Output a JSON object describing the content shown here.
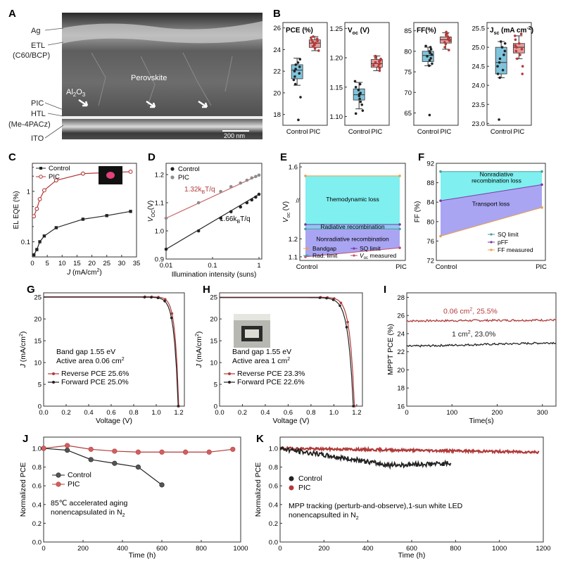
{
  "colors": {
    "control": "#222222",
    "pic": "#b23a3a",
    "pic_light": "#c96a6a",
    "box_control": "#7fc4dc",
    "box_pic": "#e79a9a",
    "cyan": "#7fefef",
    "blue": "#8fc6f2",
    "violet": "#a9a5f3",
    "orange": "#e9a04a",
    "teal": "#4a9e9e",
    "purple": "#7a3aa0",
    "green": "#5fa25f"
  },
  "panels": {
    "A": {
      "letter": "A",
      "labels": [
        "Ag",
        "ETL",
        "(C60/BCP)",
        "PIC",
        "HTL",
        "(Me-4PACz)",
        "ITO"
      ],
      "overlay": {
        "al2o3": "Al",
        "al2o3_sub": "2",
        "al2o3_end": "O",
        "al2o3_sub2": "3",
        "perovskite": "Perovskite",
        "scale": "200 nm"
      }
    },
    "B": {
      "letter": "B"
    },
    "C": {
      "letter": "C"
    },
    "D": {
      "letter": "D"
    },
    "E": {
      "letter": "E"
    },
    "F": {
      "letter": "F"
    },
    "G": {
      "letter": "G"
    },
    "H": {
      "letter": "H"
    },
    "I": {
      "letter": "I"
    },
    "J": {
      "letter": "J"
    },
    "K": {
      "letter": "K"
    }
  },
  "chart_data": [
    {
      "id": "B1",
      "type": "box",
      "title": "PCE (%)",
      "categories": [
        "Control",
        "PIC"
      ],
      "yticks": [
        18,
        20,
        22,
        24,
        26
      ],
      "ylim": [
        17,
        26.5
      ],
      "boxes": [
        {
          "name": "Control",
          "q1": 21.3,
          "median": 22.1,
          "q3": 22.6,
          "whisker_low": 20.7,
          "whisker_high": 23.2,
          "points": [
            17.5,
            19.6,
            20.8,
            21.2,
            21.5,
            21.8,
            22.0,
            22.2,
            22.4,
            22.6,
            22.8,
            23.1
          ]
        },
        {
          "name": "PIC",
          "q1": 24.2,
          "median": 24.6,
          "q3": 24.9,
          "whisker_low": 23.9,
          "whisker_high": 25.2,
          "points": [
            23.9,
            24.1,
            24.3,
            24.4,
            24.5,
            24.6,
            24.7,
            24.8,
            24.9,
            25.0,
            25.1,
            25.2
          ]
        }
      ]
    },
    {
      "id": "B2",
      "type": "box",
      "title": "V",
      "title_sub": "oc",
      "title_unit": " (V)",
      "categories": [
        "Control",
        "PIC"
      ],
      "yticks": [
        1.1,
        1.15,
        1.2,
        1.25
      ],
      "ytick_labels": [
        "1.10",
        "1.15",
        "1.20",
        "1.25"
      ],
      "ylim": [
        1.085,
        1.26
      ],
      "boxes": [
        {
          "name": "Control",
          "q1": 1.128,
          "median": 1.137,
          "q3": 1.147,
          "whisker_low": 1.113,
          "whisker_high": 1.158,
          "points": [
            1.105,
            1.11,
            1.12,
            1.125,
            1.13,
            1.135,
            1.138,
            1.14,
            1.145,
            1.15,
            1.155,
            1.16
          ]
        },
        {
          "name": "PIC",
          "q1": 1.184,
          "median": 1.19,
          "q3": 1.197,
          "whisker_low": 1.178,
          "whisker_high": 1.203,
          "points": [
            1.178,
            1.182,
            1.185,
            1.187,
            1.189,
            1.19,
            1.192,
            1.194,
            1.196,
            1.198,
            1.2,
            1.203
          ]
        }
      ]
    },
    {
      "id": "B3",
      "type": "box",
      "title": "FF(%)",
      "categories": [
        "Control",
        "PIC"
      ],
      "yticks": [
        65,
        70,
        75,
        80,
        85
      ],
      "ylim": [
        62,
        87
      ],
      "boxes": [
        {
          "name": "Control",
          "q1": 77.5,
          "median": 79.0,
          "q3": 80.0,
          "whisker_low": 76.5,
          "whisker_high": 81.0,
          "points": [
            64.5,
            76.5,
            77.0,
            77.8,
            78.3,
            78.8,
            79.2,
            79.6,
            80.0,
            80.5,
            81.0,
            81.3
          ]
        },
        {
          "name": "PIC",
          "q1": 82.0,
          "median": 82.8,
          "q3": 83.5,
          "whisker_low": 80.5,
          "whisker_high": 84.5,
          "points": [
            80.3,
            81.0,
            81.8,
            82.2,
            82.5,
            82.8,
            83.0,
            83.3,
            83.6,
            84.0,
            84.3,
            84.7
          ]
        }
      ]
    },
    {
      "id": "B4",
      "type": "box",
      "title": "J",
      "title_sub": "sc",
      "title_unit": " (mA cm",
      "title_sup": "-2",
      "title_end": ")",
      "categories": [
        "Control",
        "PIC"
      ],
      "yticks": [
        23.0,
        23.5,
        24.0,
        24.5,
        25.0,
        25.5
      ],
      "ytick_labels": [
        "23.0",
        "23.5",
        "24.0",
        "24.5",
        "25.0",
        "25.5"
      ],
      "ylim": [
        22.95,
        25.65
      ],
      "boxes": [
        {
          "name": "Control",
          "q1": 24.3,
          "median": 24.6,
          "q3": 25.0,
          "whisker_low": 24.2,
          "whisker_high": 25.15,
          "points": [
            23.1,
            24.2,
            24.3,
            24.4,
            24.5,
            24.6,
            24.7,
            24.8,
            24.9,
            25.0,
            25.1,
            25.15
          ]
        },
        {
          "name": "PIC",
          "q1": 24.85,
          "median": 25.0,
          "q3": 25.1,
          "whisker_low": 24.7,
          "whisker_high": 25.3,
          "points": [
            24.3,
            24.5,
            24.7,
            24.8,
            24.9,
            24.95,
            25.0,
            25.05,
            25.1,
            25.2,
            25.3,
            25.35
          ]
        }
      ]
    },
    {
      "id": "C",
      "type": "line",
      "ylog": true,
      "xlabel": "J",
      "xlabel_unit": " (mA/cm",
      "xlabel_sup": "2",
      "xlabel_end": ")",
      "ylabel": "EL EQE (%)",
      "xlim": [
        0,
        35
      ],
      "xticks": [
        0,
        5,
        10,
        15,
        20,
        25,
        30,
        35
      ],
      "ylim": [
        0.05,
        3.6
      ],
      "yticks": [
        0.1,
        1
      ],
      "ytick_labels": [
        "0.1",
        "1"
      ],
      "legend": [
        "Control",
        "PIC"
      ],
      "series": [
        {
          "name": "Control",
          "x": [
            0.5,
            1.5,
            2.5,
            4,
            8,
            17,
            25,
            33
          ],
          "y": [
            0.055,
            0.07,
            0.1,
            0.13,
            0.19,
            0.28,
            0.33,
            0.4
          ]
        },
        {
          "name": "PIC",
          "x": [
            0.5,
            1.5,
            2.5,
            4,
            8,
            17,
            25,
            33
          ],
          "y": [
            0.32,
            0.45,
            0.7,
            1.05,
            1.65,
            2.25,
            2.35,
            2.45
          ]
        }
      ]
    },
    {
      "id": "D",
      "type": "scatter",
      "xlog": true,
      "xlabel": "Illumination intensity (suns)",
      "ylabel": "V",
      "ylabel_sub": "OC",
      "ylabel_unit": "(V)",
      "xlim": [
        0.01,
        1.15
      ],
      "xticks": [
        0.01,
        0.1,
        1
      ],
      "xtick_labels": [
        "0.01",
        "0.1",
        "1"
      ],
      "ylim": [
        0.9,
        1.24
      ],
      "yticks": [
        0.9,
        1.0,
        1.1,
        1.2
      ],
      "ytick_labels": [
        "0.9",
        "1.0",
        "1.1",
        "1.2"
      ],
      "legend": [
        "Control",
        "PIC"
      ],
      "annotations": [
        {
          "text": "1.32k",
          "sub": "B",
          "end": "T/q",
          "series": "PIC"
        },
        {
          "text": "1.66k",
          "sub": "B",
          "end": "T/q",
          "series": "Control"
        }
      ],
      "series": [
        {
          "name": "Control",
          "x": [
            0.01,
            0.05,
            0.15,
            0.25,
            0.4,
            0.55,
            0.7,
            0.85,
            1.0
          ],
          "y": [
            0.935,
            1.0,
            1.045,
            1.068,
            1.085,
            1.1,
            1.11,
            1.12,
            1.13
          ]
        },
        {
          "name": "PIC",
          "x": [
            0.01,
            0.05,
            0.15,
            0.25,
            0.4,
            0.55,
            0.7,
            0.85,
            1.0
          ],
          "y": [
            1.045,
            1.1,
            1.14,
            1.157,
            1.17,
            1.18,
            1.188,
            1.193,
            1.198
          ]
        }
      ]
    },
    {
      "id": "E",
      "type": "line",
      "ylabel": "V",
      "ylabel_sub": "oc",
      "ylabel_unit": " (V)",
      "categories": [
        "Control",
        "PIC"
      ],
      "ylim": [
        1.08,
        1.62
      ],
      "yticks": [
        1.1,
        1.2,
        1.6
      ],
      "ytick_labels": [
        "1.1",
        "1.2",
        "1.6"
      ],
      "regions": [
        "Themodynamic loss",
        "Radiative recombination",
        "Nonradiative recombination"
      ],
      "legend": [
        "Bandgap",
        "Rad. limit",
        "SQ limit",
        "V",
        "oc",
        " measured"
      ],
      "series": [
        {
          "name": "Bandgap",
          "y": [
            1.55,
            1.55
          ]
        },
        {
          "name": "SQ limit",
          "y": [
            1.28,
            1.28
          ]
        },
        {
          "name": "Rad. limit",
          "y": [
            1.255,
            1.255
          ]
        },
        {
          "name": "Voc measured",
          "y": [
            1.1,
            1.15
          ]
        }
      ]
    },
    {
      "id": "F",
      "type": "line",
      "ylabel": "FF (%)",
      "categories": [
        "Control",
        "PIC"
      ],
      "ylim": [
        72,
        92
      ],
      "yticks": [
        72,
        76,
        80,
        84,
        88,
        92
      ],
      "regions": [
        "Nonradiative",
        "recombination loss",
        "Transport loss"
      ],
      "legend": [
        "SQ limit",
        "pFF",
        "FF measured"
      ],
      "series": [
        {
          "name": "SQ limit",
          "y": [
            90.3,
            90.3
          ]
        },
        {
          "name": "pFF",
          "y": [
            84.3,
            87.6
          ]
        },
        {
          "name": "FF measured",
          "y": [
            77.0,
            82.9
          ]
        }
      ]
    },
    {
      "id": "G",
      "type": "line",
      "xlabel": "Voltage (V)",
      "ylabel": "J",
      "ylabel_unit": " (mA/cm",
      "ylabel_sup": "2",
      "ylabel_end": ")",
      "xlim": [
        0,
        1.25
      ],
      "xticks": [
        0.0,
        0.2,
        0.4,
        0.6,
        0.8,
        1.0,
        1.2
      ],
      "xtick_labels": [
        "0.0",
        "0.2",
        "0.4",
        "0.6",
        "0.8",
        "1.0",
        "1.2"
      ],
      "ylim": [
        0,
        26
      ],
      "yticks": [
        0,
        5,
        10,
        15,
        20,
        25
      ],
      "info": [
        "Band gap 1.55 eV",
        "Active area 0.06 cm",
        "2"
      ],
      "legend": [
        "Reverse PCE 25.6%",
        "Forward PCE 25.0%"
      ],
      "series": [
        {
          "name": "Reverse PCE 25.6%",
          "voc": 1.2,
          "jsc": 25.1,
          "k": 0.032
        },
        {
          "name": "Forward PCE 25.0%",
          "voc": 1.195,
          "jsc": 25.0,
          "k": 0.036
        }
      ]
    },
    {
      "id": "H",
      "type": "line",
      "xlabel": "Voltage (V)",
      "ylabel": "J",
      "ylabel_unit": " (mA/cm",
      "ylabel_sup": "2",
      "ylabel_end": ")",
      "xlim": [
        0,
        1.25
      ],
      "xticks": [
        0.0,
        0.2,
        0.4,
        0.6,
        0.8,
        1.0,
        1.2
      ],
      "xtick_labels": [
        "0.0",
        "0.2",
        "0.4",
        "0.6",
        "0.8",
        "1.0",
        "1.2"
      ],
      "ylim": [
        0,
        26
      ],
      "yticks": [
        0,
        5,
        10,
        15,
        20,
        25
      ],
      "info": [
        "Band gap 1.55 eV",
        "Active area 1 cm",
        "2"
      ],
      "legend": [
        "Reverse PCE 23.3%",
        "Forward PCE 22.6%"
      ],
      "series": [
        {
          "name": "Reverse PCE 23.3%",
          "voc": 1.18,
          "jsc": 25.0,
          "k": 0.04
        },
        {
          "name": "Forward PCE 22.6%",
          "voc": 1.17,
          "jsc": 24.9,
          "k": 0.045
        }
      ]
    },
    {
      "id": "I",
      "type": "line",
      "xlabel": "Time(s)",
      "ylabel": "MPPT PCE (%)",
      "xlim": [
        0,
        330
      ],
      "xticks": [
        0,
        100,
        200,
        300
      ],
      "ylim": [
        16,
        28.5
      ],
      "yticks": [
        16,
        18,
        20,
        22,
        24,
        26,
        28
      ],
      "series": [
        {
          "name": "0.06 cm",
          "label_sup": "2",
          "label_end": ", 25.5%",
          "start": 25.4,
          "end": 25.5
        },
        {
          "name": "1 cm",
          "label_sup": "2",
          "label_end": ", 23.0%",
          "start": 22.6,
          "end": 23.0
        }
      ]
    },
    {
      "id": "J",
      "type": "line",
      "xlabel": "Time (h)",
      "ylabel": "Normalized PCE",
      "xlim": [
        0,
        1000
      ],
      "xticks": [
        0,
        200,
        400,
        600,
        800,
        1000
      ],
      "ylim": [
        0,
        1.12
      ],
      "yticks": [
        0.0,
        0.2,
        0.4,
        0.6,
        0.8,
        1.0
      ],
      "ytick_labels": [
        "0.0",
        "0.2",
        "0.4",
        "0.6",
        "0.8",
        "1.0"
      ],
      "legend": [
        "Control",
        "PIC"
      ],
      "note": [
        "85℃ accelerated aging",
        "nonencapsulated in N",
        "2"
      ],
      "series": [
        {
          "name": "Control",
          "x": [
            0,
            120,
            240,
            360,
            480,
            600
          ],
          "y": [
            1.0,
            0.98,
            0.88,
            0.84,
            0.8,
            0.61
          ]
        },
        {
          "name": "PIC",
          "x": [
            0,
            120,
            240,
            360,
            480,
            600,
            720,
            840,
            960
          ],
          "y": [
            1.0,
            1.03,
            0.99,
            0.97,
            0.96,
            0.96,
            0.96,
            0.96,
            0.99
          ]
        }
      ]
    },
    {
      "id": "K",
      "type": "line",
      "xlabel": "Time (h)",
      "ylabel": "Normalized PCE",
      "xlim": [
        0,
        1200
      ],
      "xticks": [
        0,
        200,
        400,
        600,
        800,
        1000,
        1200
      ],
      "ylim": [
        0,
        1.12
      ],
      "yticks": [
        0.0,
        0.2,
        0.4,
        0.6,
        0.8,
        1.0
      ],
      "ytick_labels": [
        "0.0",
        "0.2",
        "0.4",
        "0.6",
        "0.8",
        "1.0"
      ],
      "legend": [
        "Control",
        "PIC"
      ],
      "note": [
        "MPP tracking (perturb-and-observe),1-sun white LED",
        "nonencapsulted in N",
        "2"
      ],
      "series": [
        {
          "name": "Control",
          "end_x": 780,
          "end_y": 0.82
        },
        {
          "name": "PIC",
          "end_x": 1180,
          "end_y": 0.96
        }
      ]
    }
  ]
}
